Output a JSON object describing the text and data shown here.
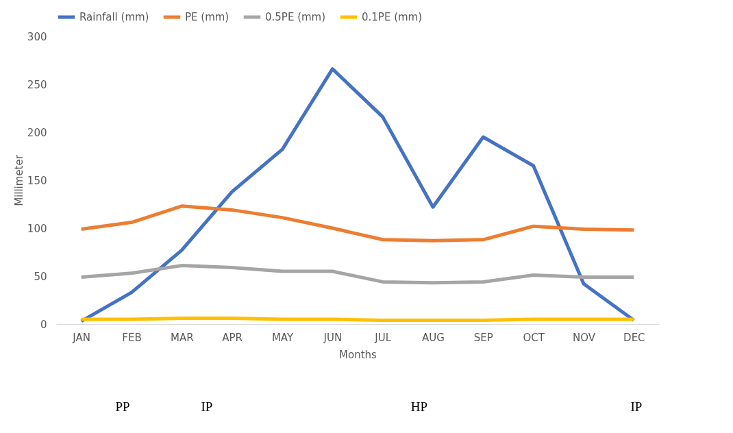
{
  "chart_data": {
    "type": "line",
    "xlabel": "Months",
    "ylabel": "Millimeter",
    "categories": [
      "JAN",
      "FEB",
      "MAR",
      "APR",
      "MAY",
      "JUN",
      "JUL",
      "AUG",
      "SEP",
      "OCT",
      "NOV",
      "DEC"
    ],
    "series": [
      {
        "name": "Rainfall (mm)",
        "color": "#4472c4",
        "values": [
          3,
          33,
          77,
          138,
          182,
          266,
          216,
          122,
          195,
          165,
          42,
          4
        ]
      },
      {
        "name": "PE (mm)",
        "color": "#ed7d31",
        "values": [
          99,
          106,
          123,
          119,
          111,
          100,
          88,
          87,
          88,
          102,
          99,
          98
        ]
      },
      {
        "name": "0.5PE (mm)",
        "color": "#a5a5a5",
        "values": [
          49,
          53,
          61,
          59,
          55,
          55,
          44,
          43,
          44,
          51,
          49,
          49
        ]
      },
      {
        "name": "0.1PE (mm)",
        "color": "#ffc000",
        "values": [
          5,
          5,
          6,
          6,
          5,
          5,
          4,
          4,
          4,
          5,
          5,
          5
        ]
      }
    ],
    "ylim": [
      0,
      300
    ],
    "yticks": [
      0,
      50,
      100,
      150,
      200,
      250,
      300
    ],
    "grid": false,
    "legend": "top",
    "marker": "none",
    "line_style": "solid",
    "annotations": [
      "PP",
      "IP",
      "HP",
      "IP"
    ]
  }
}
